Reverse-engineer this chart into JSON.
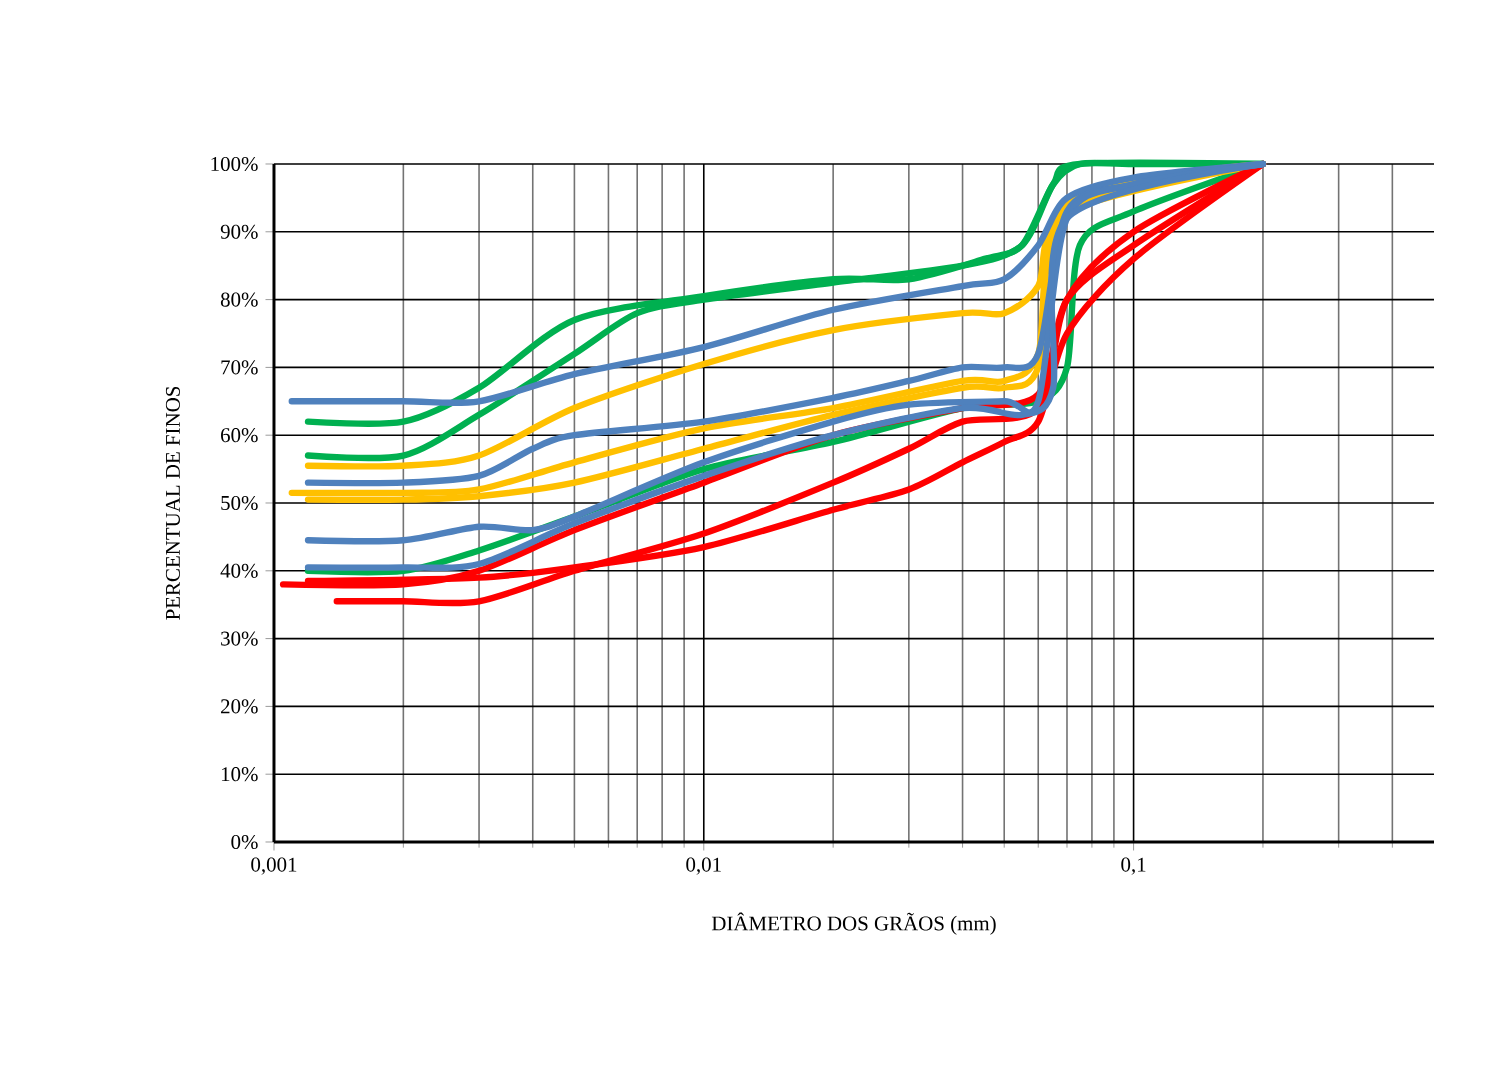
{
  "chart_data": {
    "type": "line",
    "xlabel": "DIÂMETRO DOS GRÃOS (mm)",
    "ylabel": "PERCENTUAL DE FINOS",
    "log": "x",
    "grid": true,
    "marker": "none",
    "line_style": "solid",
    "xlim": [
      0.001,
      0.5
    ],
    "xticks": [
      {
        "value": 0.001,
        "label": "0,001"
      },
      {
        "value": 0.01,
        "label": "0,01"
      },
      {
        "value": 0.1,
        "label": "0,1"
      }
    ],
    "ylim": [
      0,
      100
    ],
    "yticks": [
      {
        "value": 0,
        "label": "0%"
      },
      {
        "value": 10,
        "label": "10%"
      },
      {
        "value": 20,
        "label": "20%"
      },
      {
        "value": 30,
        "label": "30%"
      },
      {
        "value": 40,
        "label": "40%"
      },
      {
        "value": 50,
        "label": "50%"
      },
      {
        "value": 60,
        "label": "60%"
      },
      {
        "value": 70,
        "label": "70%"
      },
      {
        "value": 80,
        "label": "80%"
      },
      {
        "value": 90,
        "label": "90%"
      },
      {
        "value": 100,
        "label": "100%"
      }
    ],
    "series": [
      {
        "color": "#00b050",
        "x": [
          0.0012,
          0.002,
          0.003,
          0.005,
          0.01,
          0.02,
          0.03,
          0.045,
          0.055,
          0.065,
          0.075,
          0.1,
          0.2
        ],
        "values": [
          62,
          62,
          67,
          77,
          80.5,
          83,
          83,
          86,
          88,
          97,
          100,
          100,
          100
        ]
      },
      {
        "color": "#00b050",
        "x": [
          0.0012,
          0.002,
          0.003,
          0.005,
          0.007,
          0.01,
          0.02,
          0.04,
          0.055,
          0.065,
          0.075,
          0.2
        ],
        "values": [
          57,
          57,
          63,
          72,
          78,
          80,
          82.5,
          85,
          88,
          97,
          100,
          100
        ]
      },
      {
        "color": "#00b050",
        "x": [
          0.0012,
          0.002,
          0.003,
          0.005,
          0.01,
          0.02,
          0.04,
          0.06,
          0.07,
          0.075,
          0.1,
          0.2
        ],
        "values": [
          40,
          40,
          43,
          48,
          55,
          59,
          64,
          65,
          70,
          88,
          93,
          100
        ]
      },
      {
        "color": "#ffc000",
        "x": [
          0.0012,
          0.002,
          0.003,
          0.005,
          0.01,
          0.02,
          0.04,
          0.05,
          0.06,
          0.07,
          0.2
        ],
        "values": [
          55.5,
          55.5,
          57,
          64,
          70.5,
          75.5,
          78,
          78,
          82,
          93,
          100
        ]
      },
      {
        "color": "#ffc000",
        "x": [
          0.0011,
          0.002,
          0.003,
          0.005,
          0.01,
          0.02,
          0.04,
          0.05,
          0.06,
          0.07,
          0.2
        ],
        "values": [
          51.5,
          51.5,
          52,
          56,
          61,
          64,
          68,
          68,
          72,
          94,
          100
        ]
      },
      {
        "color": "#ffc000",
        "x": [
          0.0012,
          0.002,
          0.003,
          0.005,
          0.01,
          0.02,
          0.04,
          0.05,
          0.06,
          0.07,
          0.2
        ],
        "values": [
          50.5,
          50.5,
          51,
          53,
          58,
          63,
          67,
          67,
          70,
          93,
          100
        ]
      },
      {
        "color": "#ff0000",
        "x": [
          0.00105,
          0.002,
          0.003,
          0.005,
          0.01,
          0.02,
          0.04,
          0.06,
          0.07,
          0.1,
          0.2
        ],
        "values": [
          38,
          38,
          40,
          46,
          53,
          60,
          64,
          66,
          80,
          88,
          100
        ]
      },
      {
        "color": "#ff0000",
        "x": [
          0.0012,
          0.003,
          0.005,
          0.01,
          0.02,
          0.03,
          0.04,
          0.05,
          0.06,
          0.07,
          0.1,
          0.2
        ],
        "values": [
          38.5,
          39,
          40.5,
          43.5,
          49,
          52,
          56,
          59,
          62,
          75,
          86,
          100
        ]
      },
      {
        "color": "#ff0000",
        "x": [
          0.0014,
          0.002,
          0.003,
          0.005,
          0.01,
          0.02,
          0.03,
          0.04,
          0.06,
          0.07,
          0.1,
          0.2
        ],
        "values": [
          35.5,
          35.5,
          35.5,
          40,
          45.5,
          53,
          58,
          62,
          64,
          80,
          90,
          100
        ]
      },
      {
        "color": "#4f81bd",
        "x": [
          0.0011,
          0.002,
          0.003,
          0.005,
          0.01,
          0.02,
          0.04,
          0.05,
          0.06,
          0.07,
          0.1,
          0.2
        ],
        "values": [
          65,
          65,
          65,
          69,
          73,
          78.5,
          82,
          83,
          88,
          95,
          98,
          100
        ]
      },
      {
        "color": "#4f81bd",
        "x": [
          0.0012,
          0.002,
          0.003,
          0.004,
          0.005,
          0.01,
          0.02,
          0.03,
          0.04,
          0.05,
          0.06,
          0.07,
          0.1,
          0.2
        ],
        "values": [
          53,
          53,
          54,
          58,
          60,
          62,
          65.5,
          68,
          70,
          70,
          72,
          93,
          97,
          100
        ]
      },
      {
        "color": "#4f81bd",
        "x": [
          0.0012,
          0.002,
          0.003,
          0.004,
          0.005,
          0.01,
          0.02,
          0.03,
          0.05,
          0.06,
          0.07,
          0.1,
          0.2
        ],
        "values": [
          44.5,
          44.5,
          46.5,
          46,
          48,
          56,
          62,
          64.5,
          65,
          65,
          92,
          97,
          100
        ]
      },
      {
        "color": "#4f81bd",
        "x": [
          0.0012,
          0.002,
          0.003,
          0.005,
          0.01,
          0.02,
          0.04,
          0.055,
          0.065,
          0.07,
          0.2
        ],
        "values": [
          40.5,
          40.5,
          41,
          47,
          54,
          60,
          64,
          63,
          67,
          92,
          100
        ]
      }
    ]
  }
}
